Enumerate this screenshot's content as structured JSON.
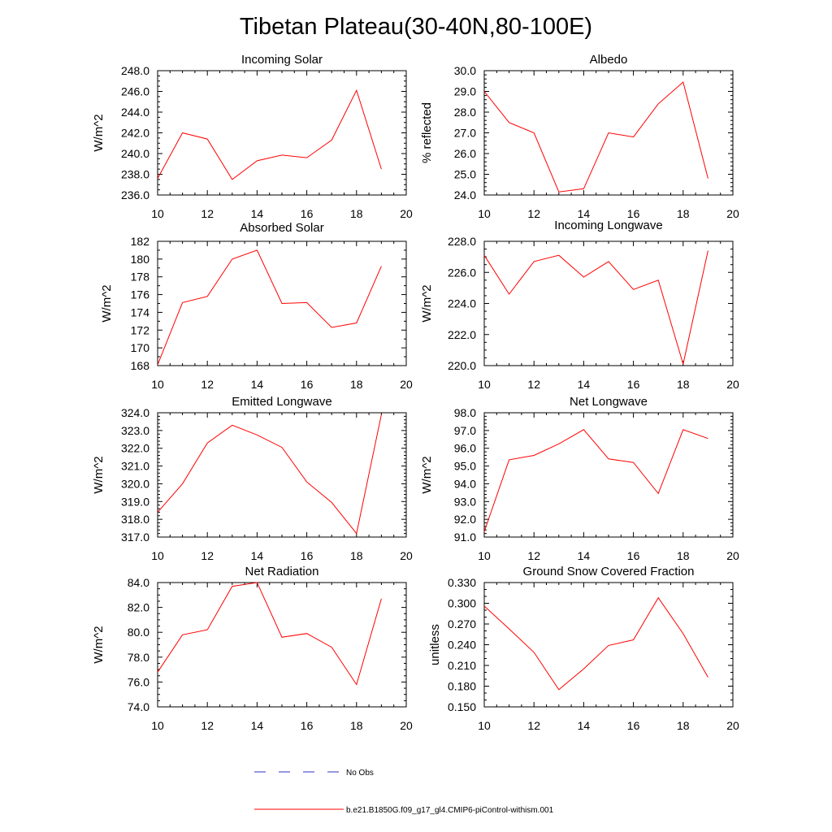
{
  "figure": {
    "title": "Tibetan Plateau(30-40N,80-100E)",
    "series_color": "#ff0000",
    "obs_color": "#3030c0"
  },
  "legend": {
    "entries": [
      {
        "label": "No Obs",
        "style": "dashed",
        "color": "#3030c0"
      },
      {
        "label": "b.e21.B1850G.f09_g17_gl4.CMIP6-piControl-withism.001",
        "style": "solid",
        "color": "#ff0000"
      }
    ]
  },
  "chart_data": [
    {
      "type": "line",
      "title": "Incoming Solar",
      "ylabel": "W/m^2",
      "x": [
        10,
        11,
        12,
        13,
        14,
        15,
        16,
        17,
        18,
        19
      ],
      "values": [
        237.6,
        242.0,
        241.4,
        237.5,
        239.3,
        239.85,
        239.6,
        241.3,
        246.1,
        238.5
      ],
      "xlim": [
        10,
        20
      ],
      "ylim": [
        236,
        248
      ],
      "xticks": [
        "10",
        "12",
        "14",
        "16",
        "18",
        "20"
      ],
      "yticks": [
        "236.0",
        "238.0",
        "240.0",
        "242.0",
        "244.0",
        "246.0",
        "248.0"
      ],
      "y_minor": 0.5
    },
    {
      "type": "line",
      "title": "Albedo",
      "ylabel": "% reflected",
      "x": [
        10,
        11,
        12,
        13,
        14,
        15,
        16,
        17,
        18,
        19
      ],
      "values": [
        29.0,
        27.5,
        27.0,
        24.15,
        24.3,
        27.0,
        26.8,
        28.4,
        29.45,
        24.8
      ],
      "xlim": [
        10,
        20
      ],
      "ylim": [
        24,
        30
      ],
      "xticks": [
        "10",
        "12",
        "14",
        "16",
        "18",
        "20"
      ],
      "yticks": [
        "24.0",
        "25.0",
        "26.0",
        "27.0",
        "28.0",
        "29.0",
        "30.0"
      ],
      "y_minor": 0.2
    },
    {
      "type": "line",
      "title": "Absorbed Solar",
      "ylabel": "W/m^2",
      "x": [
        10,
        11,
        12,
        13,
        14,
        15,
        16,
        17,
        18,
        19
      ],
      "values": [
        168.1,
        175.1,
        175.8,
        180.0,
        181.0,
        175.0,
        175.1,
        172.3,
        172.8,
        179.2
      ],
      "xlim": [
        10,
        20
      ],
      "ylim": [
        168,
        182
      ],
      "xticks": [
        "10",
        "12",
        "14",
        "16",
        "18",
        "20"
      ],
      "yticks": [
        "168",
        "170",
        "172",
        "174",
        "176",
        "178",
        "180",
        "182"
      ],
      "y_minor": 1
    },
    {
      "type": "line",
      "title": "Incoming Longwave",
      "ylabel": "W/m^2",
      "x": [
        10,
        11,
        12,
        13,
        14,
        15,
        16,
        17,
        18,
        19
      ],
      "values": [
        227.1,
        224.6,
        226.7,
        227.1,
        225.7,
        226.7,
        224.9,
        225.5,
        220.1,
        227.4
      ],
      "xlim": [
        10,
        20
      ],
      "ylim": [
        220,
        228
      ],
      "xticks": [
        "10",
        "12",
        "14",
        "16",
        "18",
        "20"
      ],
      "yticks": [
        "220.0",
        "222.0",
        "224.0",
        "226.0",
        "228.0"
      ],
      "y_minor": 0.5
    },
    {
      "type": "line",
      "title": "Emitted Longwave",
      "ylabel": "W/m^2",
      "x": [
        10,
        11,
        12,
        13,
        14,
        15,
        16,
        17,
        18,
        19
      ],
      "values": [
        318.4,
        320.0,
        322.3,
        323.3,
        322.75,
        322.05,
        320.1,
        318.95,
        317.2,
        323.9
      ],
      "xlim": [
        10,
        20
      ],
      "ylim": [
        317,
        324
      ],
      "xticks": [
        "10",
        "12",
        "14",
        "16",
        "18",
        "20"
      ],
      "yticks": [
        "317.0",
        "318.0",
        "319.0",
        "320.0",
        "321.0",
        "322.0",
        "323.0",
        "324.0"
      ],
      "y_minor": 0.2
    },
    {
      "type": "line",
      "title": "Net Longwave",
      "ylabel": "W/m^2",
      "x": [
        10,
        11,
        12,
        13,
        14,
        15,
        16,
        17,
        18,
        19
      ],
      "values": [
        91.3,
        95.35,
        95.6,
        96.25,
        97.05,
        95.4,
        95.2,
        93.45,
        97.05,
        96.55
      ],
      "xlim": [
        10,
        20
      ],
      "ylim": [
        91,
        98
      ],
      "xticks": [
        "10",
        "12",
        "14",
        "16",
        "18",
        "20"
      ],
      "yticks": [
        "91.0",
        "92.0",
        "93.0",
        "94.0",
        "95.0",
        "96.0",
        "97.0",
        "98.0"
      ],
      "y_minor": 0.2
    },
    {
      "type": "line",
      "title": "Net Radiation",
      "ylabel": "W/m^2",
      "x": [
        10,
        11,
        12,
        13,
        14,
        15,
        16,
        17,
        18,
        19
      ],
      "values": [
        76.8,
        79.8,
        80.2,
        83.7,
        84.0,
        79.6,
        79.9,
        78.8,
        75.8,
        82.7
      ],
      "xlim": [
        10,
        20
      ],
      "ylim": [
        74,
        84
      ],
      "xticks": [
        "10",
        "12",
        "14",
        "16",
        "18",
        "20"
      ],
      "yticks": [
        "74.0",
        "76.0",
        "78.0",
        "80.0",
        "82.0",
        "84.0"
      ],
      "y_minor": 0.5
    },
    {
      "type": "line",
      "title": "Ground Snow Covered Fraction",
      "ylabel": "unitless",
      "x": [
        10,
        11,
        12,
        13,
        14,
        15,
        16,
        17,
        18,
        19
      ],
      "values": [
        0.296,
        0.263,
        0.229,
        0.175,
        0.205,
        0.239,
        0.247,
        0.308,
        0.256,
        0.193
      ],
      "xlim": [
        10,
        20
      ],
      "ylim": [
        0.15,
        0.33
      ],
      "xticks": [
        "10",
        "12",
        "14",
        "16",
        "18",
        "20"
      ],
      "yticks": [
        "0.150",
        "0.180",
        "0.210",
        "0.240",
        "0.270",
        "0.300",
        "0.330"
      ],
      "y_minor": 0.01
    }
  ]
}
